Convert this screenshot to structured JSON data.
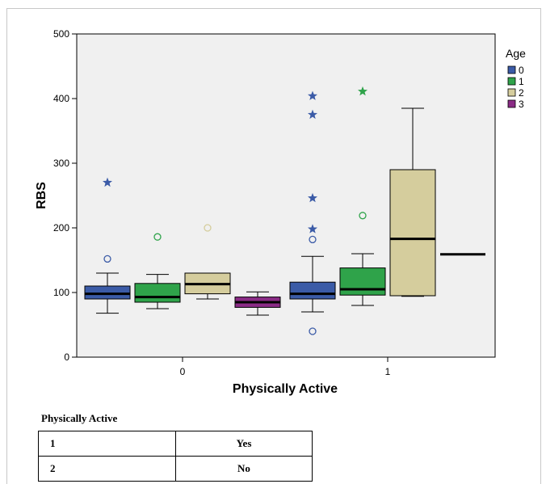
{
  "chart_data": {
    "type": "boxplot",
    "xlabel": "Physically Active",
    "ylabel": "RBS",
    "ylim": [
      0,
      500
    ],
    "yticks": [
      0,
      100,
      200,
      300,
      400,
      500
    ],
    "categories": [
      "0",
      "1"
    ],
    "legend": {
      "title": "Age",
      "placement": "right",
      "entries": [
        "0",
        "1",
        "2",
        "3"
      ]
    },
    "series": [
      {
        "name": "0",
        "color": "#3b5ba7",
        "boxes": [
          {
            "category": "0",
            "whisker_low": 68,
            "q1": 90,
            "median": 98,
            "q3": 110,
            "whisker_high": 130,
            "outliers": [
              {
                "value": 152,
                "marker": "circle"
              }
            ],
            "extremes": [
              {
                "value": 270,
                "marker": "star"
              }
            ]
          },
          {
            "category": "1",
            "whisker_low": 70,
            "q1": 90,
            "median": 98,
            "q3": 116,
            "whisker_high": 156,
            "outliers": [
              {
                "value": 182,
                "marker": "circle"
              },
              {
                "value": 40,
                "marker": "circle"
              }
            ],
            "extremes": [
              {
                "value": 198,
                "marker": "star"
              },
              {
                "value": 246,
                "marker": "star"
              },
              {
                "value": 375,
                "marker": "star"
              },
              {
                "value": 404,
                "marker": "star"
              }
            ]
          }
        ]
      },
      {
        "name": "1",
        "color": "#2fa34a",
        "boxes": [
          {
            "category": "0",
            "whisker_low": 75,
            "q1": 85,
            "median": 93,
            "q3": 114,
            "whisker_high": 128,
            "outliers": [
              {
                "value": 186,
                "marker": "circle"
              }
            ],
            "extremes": []
          },
          {
            "category": "1",
            "whisker_low": 80,
            "q1": 96,
            "median": 105,
            "q3": 138,
            "whisker_high": 160,
            "outliers": [
              {
                "value": 219,
                "marker": "circle"
              }
            ],
            "extremes": [
              {
                "value": 411,
                "marker": "star"
              }
            ]
          }
        ]
      },
      {
        "name": "2",
        "color": "#d5cd9d",
        "boxes": [
          {
            "category": "0",
            "whisker_low": 90,
            "q1": 98,
            "median": 113,
            "q3": 130,
            "whisker_high": 130,
            "outliers": [
              {
                "value": 200,
                "marker": "circle"
              }
            ],
            "extremes": []
          },
          {
            "category": "1",
            "whisker_low": 94,
            "q1": 95,
            "median": 183,
            "q3": 290,
            "whisker_high": 385,
            "outliers": [],
            "extremes": []
          }
        ]
      },
      {
        "name": "3",
        "color": "#8a2b85",
        "boxes": [
          {
            "category": "0",
            "whisker_low": 65,
            "q1": 77,
            "median": 85,
            "q3": 93,
            "whisker_high": 101,
            "outliers": [],
            "extremes": []
          },
          {
            "category": "1",
            "whisker_low": 159,
            "q1": 159,
            "median": 159,
            "q3": 159,
            "whisker_high": 159,
            "outliers": [],
            "extremes": []
          }
        ]
      }
    ]
  },
  "caption": "Physically Active",
  "table": {
    "rows": [
      {
        "code": "1",
        "meaning": "Yes"
      },
      {
        "code": "2",
        "meaning": "No"
      }
    ]
  }
}
